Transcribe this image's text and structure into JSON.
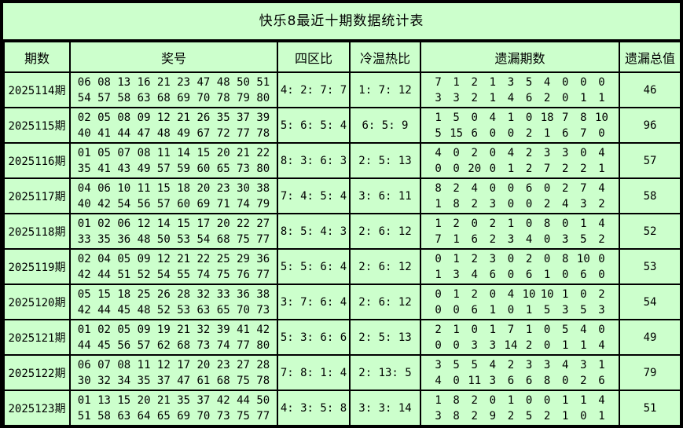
{
  "title": "快乐8最近十期数据统计表",
  "colors": {
    "background": "#ccffcc",
    "border": "#000000",
    "text": "#000000"
  },
  "chart_data": {
    "type": "table",
    "title": "快乐8最近十期数据统计表",
    "columns": [
      "期数",
      "奖号",
      "四区比",
      "冷温热比",
      "遗漏期数",
      "遗漏总值"
    ],
    "rows": [
      {
        "period": "2025114期",
        "numbers": [
          "06 08 13 16 21 23 47 48 50 51",
          "54 57 58 63 68 69 70 78 79 80"
        ],
        "zone_ratio": "4: 2: 7: 7",
        "cold_warm_hot": "1: 7: 12",
        "miss": [
          [
            "7",
            "1",
            "2",
            "1",
            "3",
            "5",
            "4",
            "0",
            "0",
            "0"
          ],
          [
            "3",
            "3",
            "2",
            "1",
            "4",
            "6",
            "2",
            "0",
            "1",
            "1"
          ]
        ],
        "miss_total": "46"
      },
      {
        "period": "2025115期",
        "numbers": [
          "02 05 08 09 12 21 26 35 37 39",
          "40 41 44 47 48 49 67 72 77 78"
        ],
        "zone_ratio": "5: 6: 5: 4",
        "cold_warm_hot": "6: 5: 9",
        "miss": [
          [
            "1",
            "5",
            "0",
            "4",
            "1",
            "0",
            "18",
            "7",
            "8",
            "10"
          ],
          [
            "5",
            "15",
            "6",
            "0",
            "0",
            "2",
            "1",
            "6",
            "7",
            "0"
          ]
        ],
        "miss_total": "96"
      },
      {
        "period": "2025116期",
        "numbers": [
          "01 05 07 08 11 14 15 20 21 22",
          "35 41 43 49 57 59 60 65 73 80"
        ],
        "zone_ratio": "8: 3: 6: 3",
        "cold_warm_hot": "2: 5: 13",
        "miss": [
          [
            "4",
            "0",
            "2",
            "0",
            "4",
            "2",
            "3",
            "3",
            "0",
            "4"
          ],
          [
            "0",
            "0",
            "20",
            "0",
            "1",
            "2",
            "7",
            "2",
            "2",
            "1"
          ]
        ],
        "miss_total": "57"
      },
      {
        "period": "2025117期",
        "numbers": [
          "04 06 10 11 15 18 20 23 30 38",
          "40 42 54 56 57 60 69 71 74 79"
        ],
        "zone_ratio": "7: 4: 5: 4",
        "cold_warm_hot": "3: 6: 11",
        "miss": [
          [
            "8",
            "2",
            "4",
            "0",
            "0",
            "6",
            "0",
            "2",
            "7",
            "4"
          ],
          [
            "1",
            "8",
            "2",
            "3",
            "0",
            "0",
            "2",
            "4",
            "3",
            "2"
          ]
        ],
        "miss_total": "58"
      },
      {
        "period": "2025118期",
        "numbers": [
          "01 02 06 12 14 15 17 20 22 27",
          "33 35 36 48 50 53 54 68 75 77"
        ],
        "zone_ratio": "8: 5: 4: 3",
        "cold_warm_hot": "2: 6: 12",
        "miss": [
          [
            "1",
            "2",
            "0",
            "2",
            "1",
            "0",
            "8",
            "0",
            "1",
            "4"
          ],
          [
            "7",
            "1",
            "6",
            "2",
            "3",
            "4",
            "0",
            "3",
            "5",
            "2"
          ]
        ],
        "miss_total": "52"
      },
      {
        "period": "2025119期",
        "numbers": [
          "02 04 05 09 12 21 22 25 29 36",
          "42 44 51 52 54 55 74 75 76 77"
        ],
        "zone_ratio": "5: 5: 6: 4",
        "cold_warm_hot": "2: 6: 12",
        "miss": [
          [
            "0",
            "1",
            "2",
            "3",
            "0",
            "2",
            "0",
            "8",
            "10",
            "0"
          ],
          [
            "1",
            "3",
            "4",
            "6",
            "0",
            "6",
            "1",
            "0",
            "6",
            "0"
          ]
        ],
        "miss_total": "53"
      },
      {
        "period": "2025120期",
        "numbers": [
          "05 15 18 25 26 28 32 33 36 38",
          "42 44 45 48 52 53 63 65 70 73"
        ],
        "zone_ratio": "3: 7: 6: 4",
        "cold_warm_hot": "2: 6: 12",
        "miss": [
          [
            "0",
            "1",
            "2",
            "0",
            "4",
            "10",
            "10",
            "1",
            "0",
            "2"
          ],
          [
            "0",
            "0",
            "6",
            "1",
            "0",
            "1",
            "5",
            "3",
            "5",
            "3"
          ]
        ],
        "miss_total": "54"
      },
      {
        "period": "2025121期",
        "numbers": [
          "01 02 05 09 19 21 32 39 41 42",
          "44 45 56 57 62 68 73 74 77 80"
        ],
        "zone_ratio": "5: 3: 6: 6",
        "cold_warm_hot": "2: 5: 13",
        "miss": [
          [
            "2",
            "1",
            "0",
            "1",
            "7",
            "1",
            "0",
            "5",
            "4",
            "0"
          ],
          [
            "0",
            "0",
            "3",
            "3",
            "14",
            "2",
            "0",
            "1",
            "1",
            "4"
          ]
        ],
        "miss_total": "49"
      },
      {
        "period": "2025122期",
        "numbers": [
          "06 07 08 11 12 17 20 23 27 28",
          "30 32 34 35 37 47 61 68 75 78"
        ],
        "zone_ratio": "7: 8: 1: 4",
        "cold_warm_hot": "2: 13: 5",
        "miss": [
          [
            "3",
            "5",
            "5",
            "4",
            "2",
            "3",
            "3",
            "4",
            "3",
            "1"
          ],
          [
            "4",
            "0",
            "11",
            "3",
            "6",
            "6",
            "8",
            "0",
            "2",
            "6"
          ]
        ],
        "miss_total": "79"
      },
      {
        "period": "2025123期",
        "numbers": [
          "01 13 15 20 21 35 37 42 44 50",
          "51 58 63 64 65 69 70 73 75 77"
        ],
        "zone_ratio": "4: 3: 5: 8",
        "cold_warm_hot": "3: 3: 14",
        "miss": [
          [
            "1",
            "8",
            "2",
            "0",
            "1",
            "0",
            "0",
            "1",
            "1",
            "4"
          ],
          [
            "3",
            "8",
            "2",
            "9",
            "2",
            "5",
            "2",
            "1",
            "0",
            "1"
          ]
        ],
        "miss_total": "51"
      }
    ]
  }
}
